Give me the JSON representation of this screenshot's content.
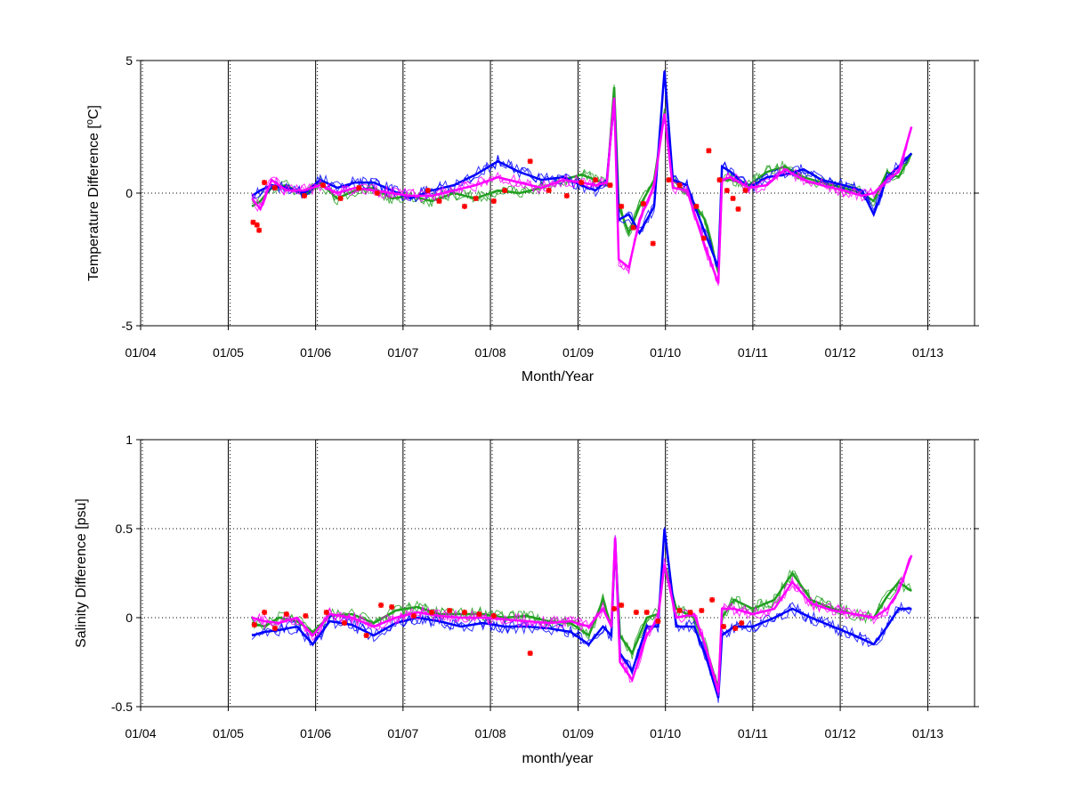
{
  "chart_data": [
    {
      "type": "line",
      "xlabel": "Month/Year",
      "ylabel_prefix": "Temperature Difference [",
      "ylabel_sup": "o",
      "ylabel_suffix": "C]",
      "xlim": [
        "2004-01-01",
        "2013-07-15"
      ],
      "ylim": [
        -5,
        5
      ],
      "xticks": [
        "01/04",
        "01/05",
        "01/06",
        "01/07",
        "01/08",
        "01/09",
        "01/10",
        "01/11",
        "01/12",
        "01/13"
      ],
      "xtick_dates": [
        "2004-01-01",
        "2005-01-01",
        "2006-01-01",
        "2007-01-01",
        "2008-01-01",
        "2009-01-01",
        "2010-01-01",
        "2011-01-01",
        "2012-01-01",
        "2013-01-01"
      ],
      "yticks": [
        -5,
        0,
        5
      ],
      "grid": "dotted",
      "series": [
        {
          "color": "#22a022",
          "x": [
            "2005-04-10",
            "2005-05-15",
            "2005-07-01",
            "2005-09-01",
            "2005-11-15",
            "2006-01-20",
            "2006-04-01",
            "2006-06-15",
            "2006-09-01",
            "2006-11-15",
            "2007-02-01",
            "2007-05-01",
            "2007-08-01",
            "2007-11-01",
            "2008-02-01",
            "2008-05-01",
            "2008-08-01",
            "2008-11-01",
            "2009-01-15",
            "2009-03-15",
            "2009-05-01",
            "2009-06-01",
            "2009-06-20",
            "2009-08-01",
            "2009-09-15",
            "2009-11-15",
            "2009-12-28",
            "2010-02-01",
            "2010-04-01",
            "2010-06-15",
            "2010-08-10",
            "2010-08-25",
            "2010-10-01",
            "2010-12-15",
            "2011-03-01",
            "2011-05-15",
            "2011-08-01",
            "2011-10-15",
            "2012-01-15",
            "2012-04-01",
            "2012-05-20",
            "2012-07-15",
            "2012-09-01",
            "2012-10-25"
          ],
          "y": [
            -0.5,
            -0.3,
            0.2,
            0.3,
            -0.1,
            0.4,
            -0.2,
            0.1,
            0.2,
            -0.2,
            -0.1,
            -0.3,
            0.0,
            -0.2,
            0.1,
            0.0,
            0.2,
            0.5,
            0.7,
            0.5,
            0.3,
            4.0,
            -0.5,
            -1.5,
            -0.5,
            0.5,
            3.0,
            0.5,
            0.0,
            -1.0,
            -3.0,
            0.5,
            0.5,
            0.3,
            0.8,
            1.0,
            0.6,
            0.4,
            0.2,
            0.0,
            -0.3,
            0.8,
            0.6,
            1.5
          ]
        },
        {
          "color": "#0000ff",
          "x": [
            "2005-04-10",
            "2005-05-15",
            "2005-07-01",
            "2005-09-01",
            "2005-11-15",
            "2006-01-20",
            "2006-04-01",
            "2006-06-15",
            "2006-09-01",
            "2006-11-15",
            "2007-02-01",
            "2007-05-01",
            "2007-08-01",
            "2007-11-01",
            "2008-02-01",
            "2008-05-01",
            "2008-08-01",
            "2008-11-01",
            "2009-01-15",
            "2009-03-15",
            "2009-05-01",
            "2009-06-01",
            "2009-06-20",
            "2009-08-01",
            "2009-09-15",
            "2009-11-15",
            "2009-12-28",
            "2010-02-01",
            "2010-04-01",
            "2010-06-15",
            "2010-08-10",
            "2010-08-25",
            "2010-10-01",
            "2010-12-15",
            "2011-03-01",
            "2011-05-15",
            "2011-08-01",
            "2011-10-15",
            "2012-01-15",
            "2012-04-01",
            "2012-05-20",
            "2012-07-15",
            "2012-09-01",
            "2012-10-25"
          ],
          "y": [
            -0.1,
            0.1,
            0.3,
            0.2,
            0.0,
            0.5,
            0.2,
            0.4,
            0.4,
            0.1,
            -0.2,
            0.1,
            0.3,
            0.7,
            1.2,
            0.8,
            0.5,
            0.6,
            0.3,
            0.1,
            0.5,
            3.5,
            -1.0,
            -0.8,
            -1.5,
            -0.5,
            4.6,
            0.5,
            0.3,
            -1.5,
            -2.8,
            1.0,
            0.8,
            0.2,
            0.6,
            0.7,
            0.9,
            0.5,
            0.3,
            0.1,
            -0.8,
            0.6,
            1.0,
            1.5
          ]
        },
        {
          "color": "#ff00ff",
          "x": [
            "2005-04-10",
            "2005-05-15",
            "2005-07-01",
            "2005-09-01",
            "2005-11-15",
            "2006-01-20",
            "2006-04-01",
            "2006-06-15",
            "2006-09-01",
            "2006-11-15",
            "2007-02-01",
            "2007-05-01",
            "2007-08-01",
            "2007-11-01",
            "2008-02-01",
            "2008-05-01",
            "2008-08-01",
            "2008-11-01",
            "2009-01-15",
            "2009-03-15",
            "2009-05-01",
            "2009-06-01",
            "2009-06-20",
            "2009-08-01",
            "2009-09-15",
            "2009-11-15",
            "2009-12-28",
            "2010-02-01",
            "2010-04-01",
            "2010-06-15",
            "2010-08-10",
            "2010-08-25",
            "2010-10-01",
            "2010-12-15",
            "2011-03-01",
            "2011-05-15",
            "2011-08-01",
            "2011-10-15",
            "2012-01-15",
            "2012-04-01",
            "2012-05-20",
            "2012-07-15",
            "2012-09-01",
            "2012-10-25"
          ],
          "y": [
            -0.2,
            -0.6,
            0.5,
            0.1,
            0.1,
            0.3,
            0.0,
            0.2,
            0.1,
            0.0,
            -0.1,
            -0.1,
            0.1,
            0.3,
            0.6,
            0.4,
            0.2,
            0.5,
            0.4,
            0.3,
            0.4,
            3.6,
            -2.5,
            -2.8,
            -1.0,
            0.3,
            3.0,
            0.2,
            0.1,
            -2.0,
            -3.4,
            0.5,
            0.6,
            0.2,
            0.3,
            0.9,
            0.5,
            0.3,
            0.1,
            -0.1,
            0.0,
            0.5,
            0.8,
            2.5
          ]
        }
      ],
      "markers": {
        "color": "#ff0000",
        "x": [
          "2005-04-15",
          "2005-05-01",
          "2005-05-10",
          "2005-06-01",
          "2005-07-15",
          "2005-11-15",
          "2006-02-01",
          "2006-04-15",
          "2006-07-01",
          "2006-09-15",
          "2007-04-15",
          "2007-06-01",
          "2007-09-15",
          "2007-11-01",
          "2008-01-15",
          "2008-03-01",
          "2008-06-15",
          "2008-09-01",
          "2008-11-15",
          "2009-01-15",
          "2009-03-15",
          "2009-05-15",
          "2009-07-01",
          "2009-08-20",
          "2009-10-01",
          "2009-11-10",
          "2010-01-15",
          "2010-03-01",
          "2010-05-10",
          "2010-06-10",
          "2010-07-01",
          "2010-08-15",
          "2010-09-15",
          "2010-10-10",
          "2010-11-01",
          "2010-12-01"
        ],
        "y": [
          -1.1,
          -1.2,
          -1.4,
          0.4,
          0.2,
          -0.1,
          0.3,
          -0.2,
          0.2,
          0.0,
          0.1,
          -0.3,
          -0.5,
          -0.2,
          -0.3,
          0.1,
          1.2,
          0.1,
          -0.1,
          0.4,
          0.5,
          0.3,
          -0.5,
          -1.3,
          -0.4,
          -1.9,
          0.5,
          0.3,
          -0.5,
          -1.7,
          1.6,
          0.5,
          0.1,
          -0.2,
          -0.6,
          0.1
        ]
      }
    },
    {
      "type": "line",
      "xlabel": "month/year",
      "ylabel": "Salinity Difference [psu]",
      "xlim": [
        "2004-01-01",
        "2013-07-15"
      ],
      "ylim": [
        -0.5,
        1
      ],
      "xticks": [
        "01/04",
        "01/05",
        "01/06",
        "01/07",
        "01/08",
        "01/09",
        "01/10",
        "01/11",
        "01/12",
        "01/13"
      ],
      "xtick_dates": [
        "2004-01-01",
        "2005-01-01",
        "2006-01-01",
        "2007-01-01",
        "2008-01-01",
        "2009-01-01",
        "2010-01-01",
        "2011-01-01",
        "2012-01-01",
        "2013-01-01"
      ],
      "yticks": [
        -0.5,
        0,
        0.5,
        1
      ],
      "grid": "dotted",
      "series": [
        {
          "color": "#22a022",
          "x": [
            "2005-04-10",
            "2005-06-01",
            "2005-08-01",
            "2005-10-15",
            "2005-12-20",
            "2006-03-01",
            "2006-06-01",
            "2006-09-01",
            "2006-12-01",
            "2007-03-01",
            "2007-06-01",
            "2007-09-01",
            "2007-12-01",
            "2008-03-01",
            "2008-06-01",
            "2008-09-01",
            "2008-12-01",
            "2009-02-15",
            "2009-04-15",
            "2009-05-20",
            "2009-06-05",
            "2009-06-25",
            "2009-08-15",
            "2009-10-15",
            "2009-12-01",
            "2009-12-28",
            "2010-02-15",
            "2010-05-01",
            "2010-06-15",
            "2010-08-10",
            "2010-08-25",
            "2010-10-15",
            "2011-01-01",
            "2011-04-01",
            "2011-06-15",
            "2011-09-01",
            "2011-12-01",
            "2012-03-01",
            "2012-05-20",
            "2012-07-15",
            "2012-09-01",
            "2012-10-25"
          ],
          "y": [
            -0.03,
            -0.05,
            0.0,
            -0.02,
            -0.08,
            0.01,
            0.02,
            -0.03,
            0.04,
            0.06,
            0.02,
            0.02,
            0.02,
            0.0,
            0.01,
            -0.02,
            -0.03,
            -0.1,
            0.1,
            -0.05,
            0.4,
            -0.1,
            -0.2,
            0.0,
            0.02,
            0.3,
            0.05,
            0.0,
            -0.15,
            -0.4,
            0.0,
            0.1,
            0.05,
            0.1,
            0.25,
            0.1,
            0.05,
            0.02,
            0.0,
            0.12,
            0.2,
            0.15
          ]
        },
        {
          "color": "#0000ff",
          "x": [
            "2005-04-10",
            "2005-06-01",
            "2005-08-01",
            "2005-10-15",
            "2005-12-20",
            "2006-03-01",
            "2006-06-01",
            "2006-09-01",
            "2006-12-01",
            "2007-03-01",
            "2007-06-01",
            "2007-09-01",
            "2007-12-01",
            "2008-03-01",
            "2008-06-01",
            "2008-09-01",
            "2008-12-01",
            "2009-02-15",
            "2009-04-15",
            "2009-05-20",
            "2009-06-05",
            "2009-06-25",
            "2009-08-15",
            "2009-10-15",
            "2009-12-01",
            "2009-12-28",
            "2010-02-15",
            "2010-05-01",
            "2010-06-15",
            "2010-08-10",
            "2010-08-25",
            "2010-10-15",
            "2011-01-01",
            "2011-04-01",
            "2011-06-15",
            "2011-09-01",
            "2011-12-01",
            "2012-03-01",
            "2012-05-20",
            "2012-07-15",
            "2012-09-01",
            "2012-10-25"
          ],
          "y": [
            -0.1,
            -0.08,
            -0.07,
            -0.05,
            -0.15,
            -0.02,
            -0.04,
            -0.1,
            -0.03,
            0.0,
            -0.02,
            -0.05,
            -0.03,
            -0.05,
            -0.05,
            -0.06,
            -0.08,
            -0.15,
            -0.05,
            -0.1,
            0.45,
            -0.2,
            -0.3,
            -0.05,
            -0.05,
            0.5,
            -0.05,
            -0.05,
            -0.2,
            -0.45,
            -0.1,
            -0.05,
            -0.05,
            0.0,
            0.05,
            0.0,
            -0.05,
            -0.1,
            -0.15,
            -0.05,
            0.05,
            0.05
          ]
        },
        {
          "color": "#ff00ff",
          "x": [
            "2005-04-10",
            "2005-06-01",
            "2005-08-01",
            "2005-10-15",
            "2005-12-20",
            "2006-03-01",
            "2006-06-01",
            "2006-09-01",
            "2006-12-01",
            "2007-03-01",
            "2007-06-01",
            "2007-09-01",
            "2007-12-01",
            "2008-03-01",
            "2008-06-01",
            "2008-09-01",
            "2008-12-01",
            "2009-02-15",
            "2009-04-15",
            "2009-05-20",
            "2009-06-05",
            "2009-06-25",
            "2009-08-15",
            "2009-10-15",
            "2009-12-01",
            "2009-12-28",
            "2010-02-15",
            "2010-05-01",
            "2010-06-15",
            "2010-08-10",
            "2010-08-25",
            "2010-10-15",
            "2011-01-01",
            "2011-04-01",
            "2011-06-15",
            "2011-09-01",
            "2011-12-01",
            "2012-03-01",
            "2012-05-20",
            "2012-07-15",
            "2012-09-01",
            "2012-10-25"
          ],
          "y": [
            0.0,
            -0.02,
            -0.03,
            0.0,
            -0.1,
            0.02,
            0.0,
            -0.05,
            0.0,
            0.03,
            0.01,
            0.0,
            0.0,
            -0.01,
            -0.02,
            -0.03,
            -0.02,
            -0.05,
            0.05,
            -0.05,
            0.45,
            -0.25,
            -0.35,
            -0.1,
            0.0,
            0.3,
            0.0,
            0.02,
            -0.15,
            -0.42,
            0.05,
            0.05,
            0.02,
            0.05,
            0.2,
            0.08,
            0.04,
            0.02,
            0.0,
            0.05,
            0.15,
            0.35
          ]
        }
      ],
      "markers": {
        "color": "#ff0000",
        "x": [
          "2005-04-20",
          "2005-06-01",
          "2005-07-15",
          "2005-09-01",
          "2005-11-20",
          "2006-02-15",
          "2006-05-01",
          "2006-08-01",
          "2006-10-01",
          "2006-11-15",
          "2007-02-15",
          "2007-05-01",
          "2007-07-15",
          "2007-09-15",
          "2007-11-15",
          "2008-01-15",
          "2008-06-15",
          "2009-06-01",
          "2009-07-01",
          "2009-09-01",
          "2009-10-15",
          "2009-12-01",
          "2010-03-01",
          "2010-04-15",
          "2010-06-01",
          "2010-07-15",
          "2010-09-01",
          "2010-10-20",
          "2010-11-15"
        ],
        "y": [
          -0.04,
          0.03,
          -0.06,
          0.02,
          0.01,
          0.03,
          -0.03,
          -0.1,
          0.07,
          0.06,
          0.01,
          0.03,
          0.04,
          0.03,
          0.02,
          0.01,
          -0.2,
          0.05,
          0.07,
          0.03,
          0.03,
          -0.02,
          0.04,
          0.03,
          0.04,
          0.1,
          -0.05,
          -0.06,
          -0.03
        ]
      }
    }
  ]
}
